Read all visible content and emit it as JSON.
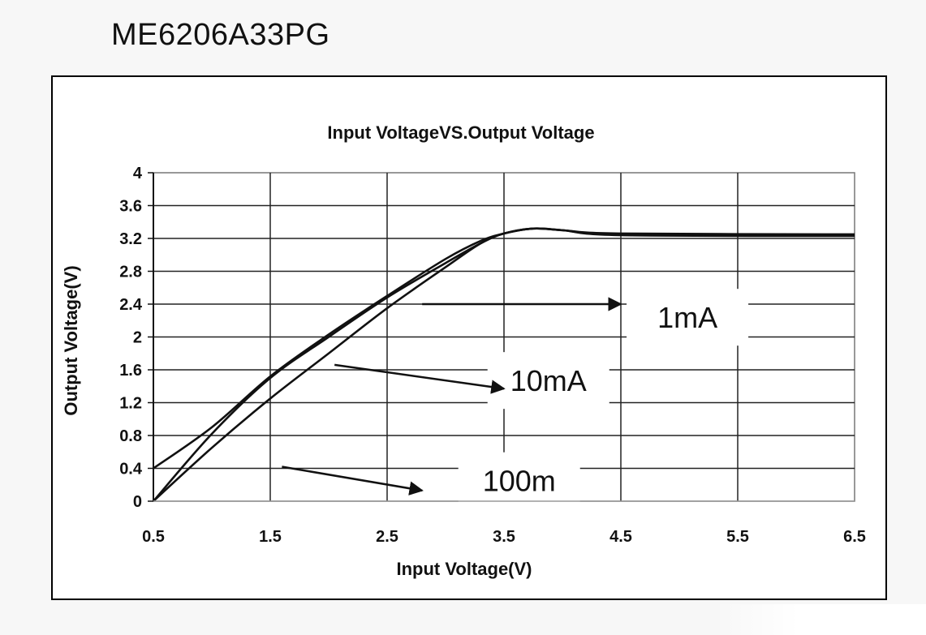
{
  "part_number": "ME6206A33PG",
  "chart_data": {
    "type": "line",
    "title": "Input VoltageVS.Output Voltage",
    "xlabel": "Input Voltage(V)",
    "ylabel": "Output Voltage(V)",
    "xlim": [
      0.5,
      6.5
    ],
    "ylim": [
      0,
      4
    ],
    "x_ticks": [
      0.5,
      1.5,
      2.5,
      3.5,
      4.5,
      5.5,
      6.5
    ],
    "x_tick_labels": [
      "0.5",
      "1.5",
      "2.5",
      "3.5",
      "4.5",
      "5.5",
      "6.5"
    ],
    "y_ticks": [
      0,
      0.4,
      0.8,
      1.2,
      1.6,
      2,
      2.4,
      2.8,
      3.2,
      3.6,
      4
    ],
    "y_tick_labels": [
      "0",
      "0.4",
      "0.8",
      "1.2",
      "1.6",
      "2",
      "2.4",
      "2.8",
      "3.2",
      "3.6",
      "4"
    ],
    "grid": true,
    "line_color": "#111111",
    "series": [
      {
        "name": "1mA",
        "points": [
          [
            0.5,
            0.4
          ],
          [
            1.0,
            0.9
          ],
          [
            1.5,
            1.52
          ],
          [
            2.0,
            2.03
          ],
          [
            2.5,
            2.5
          ],
          [
            3.0,
            2.95
          ],
          [
            3.3,
            3.17
          ],
          [
            3.5,
            3.26
          ],
          [
            3.75,
            3.32
          ],
          [
            4.0,
            3.3
          ],
          [
            4.5,
            3.26
          ],
          [
            6.5,
            3.25
          ]
        ]
      },
      {
        "name": "10mA",
        "points": [
          [
            0.5,
            0.0
          ],
          [
            1.0,
            0.82
          ],
          [
            1.5,
            1.5
          ],
          [
            2.0,
            2.0
          ],
          [
            2.5,
            2.48
          ],
          [
            3.0,
            2.9
          ],
          [
            3.3,
            3.14
          ],
          [
            3.5,
            3.26
          ],
          [
            3.75,
            3.32
          ],
          [
            4.0,
            3.3
          ],
          [
            4.5,
            3.25
          ],
          [
            6.5,
            3.24
          ]
        ]
      },
      {
        "name": "100m",
        "points": [
          [
            0.5,
            0.0
          ],
          [
            1.0,
            0.65
          ],
          [
            1.5,
            1.25
          ],
          [
            2.0,
            1.8
          ],
          [
            2.5,
            2.35
          ],
          [
            3.0,
            2.85
          ],
          [
            3.3,
            3.14
          ],
          [
            3.5,
            3.26
          ],
          [
            3.75,
            3.32
          ],
          [
            4.0,
            3.3
          ],
          [
            4.5,
            3.24
          ],
          [
            6.5,
            3.23
          ]
        ]
      }
    ],
    "annotations": [
      {
        "text": "1mA",
        "label_x": 5.07,
        "label_y": 2.24,
        "arrow_from": [
          2.8,
          2.4
        ],
        "arrow_to": [
          4.5,
          2.4
        ]
      },
      {
        "text": "10mA",
        "label_x": 3.88,
        "label_y": 1.47,
        "arrow_from": [
          2.05,
          1.66
        ],
        "arrow_to": [
          3.5,
          1.37
        ]
      },
      {
        "text": "100m",
        "label_x": 3.63,
        "label_y": 0.25,
        "arrow_from": [
          1.6,
          0.42
        ],
        "arrow_to": [
          2.8,
          0.13
        ]
      }
    ]
  }
}
